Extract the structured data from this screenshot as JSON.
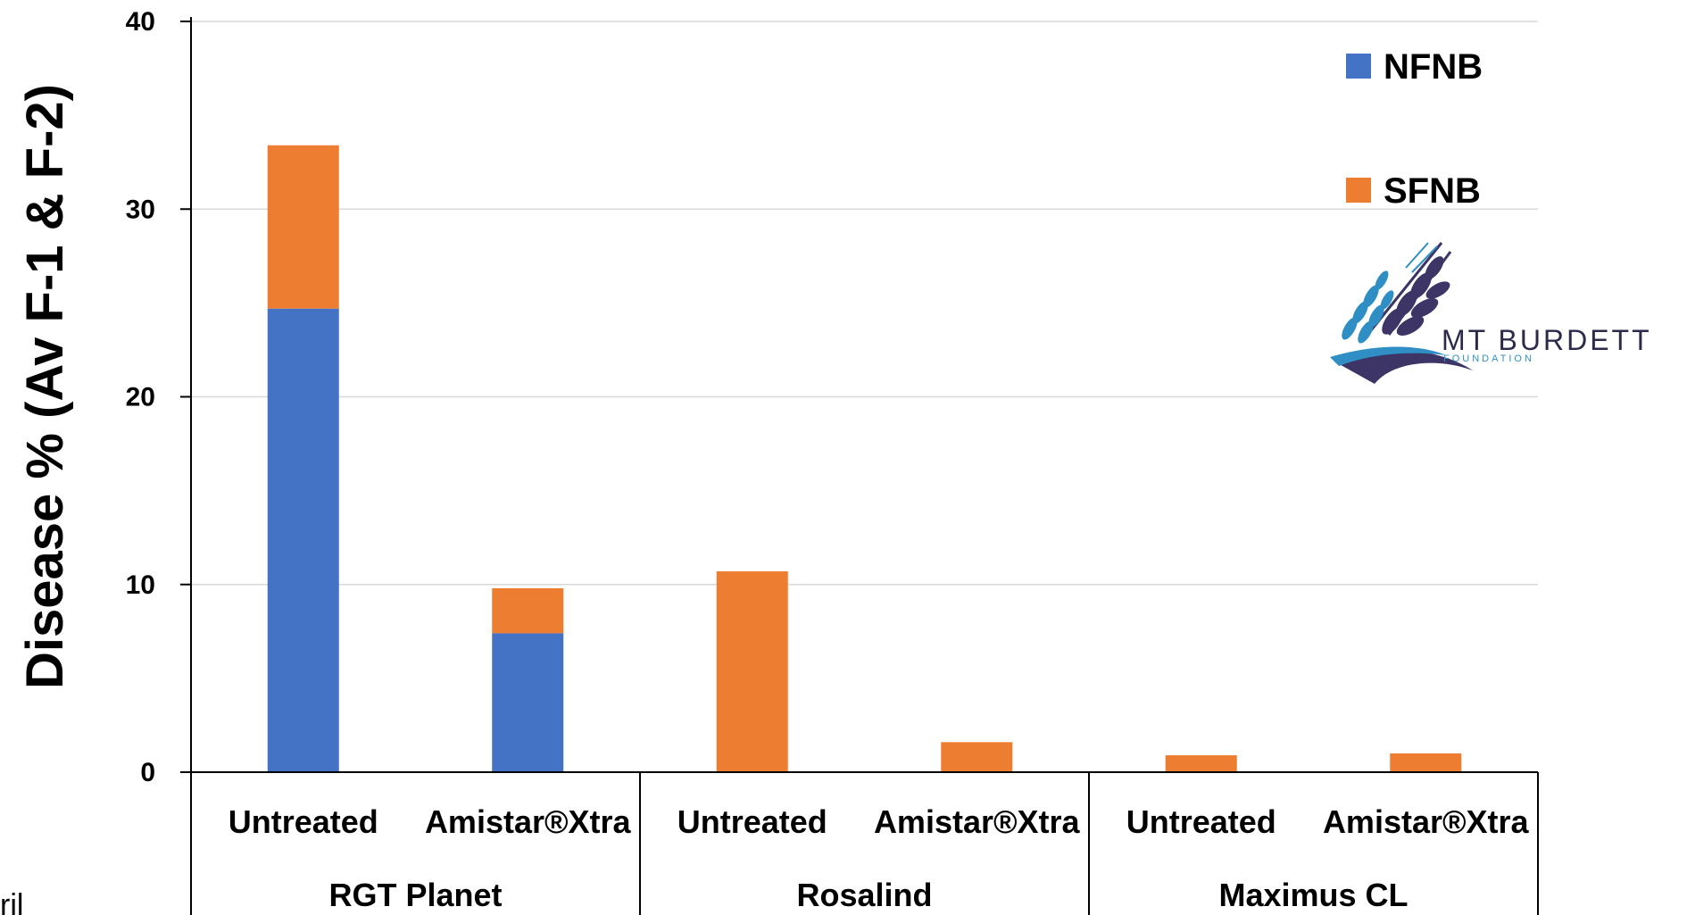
{
  "chart_data": {
    "type": "bar",
    "stacked": true,
    "ylabel": "Disease %  (Av F-1 & F-2)",
    "ylim": [
      0,
      40
    ],
    "yticks": [
      0,
      10,
      20,
      30,
      40
    ],
    "grid": true,
    "legend_position": "top-right",
    "categories": [
      "Untreated",
      "Amistar®Xtra",
      "Untreated",
      "Amistar®Xtra",
      "Untreated",
      "Amistar®Xtra"
    ],
    "groups": [
      {
        "label": "RGT Planet",
        "span": 2
      },
      {
        "label": "Rosalind",
        "span": 2
      },
      {
        "label": "Maximus CL",
        "span": 2
      }
    ],
    "series": [
      {
        "name": "NFNB",
        "color": "#4472C4",
        "values": [
          24.7,
          7.4,
          0,
          0,
          0,
          0
        ]
      },
      {
        "name": "SFNB",
        "color": "#ED7D31",
        "values": [
          8.7,
          2.4,
          10.7,
          1.6,
          0.9,
          1.0
        ]
      }
    ]
  },
  "logo": {
    "name": "mt-burdett-logo",
    "title": "MT BURDETT",
    "subtitle": "FOUNDATION"
  },
  "stray_text": "ril"
}
